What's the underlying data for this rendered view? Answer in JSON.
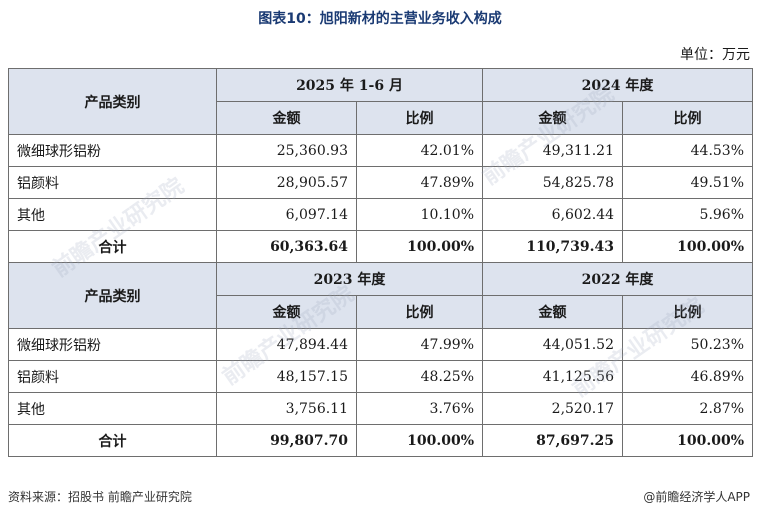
{
  "title": "图表10：旭阳新材的主营业务收入构成",
  "unit": "单位：万元",
  "category_header": "产品类别",
  "amount_label": "金额",
  "ratio_label": "比例",
  "sections": [
    {
      "period_a": "2025 年 1-6 月",
      "period_b": "2024 年度",
      "rows": [
        {
          "category": "微细球形铝粉",
          "a_amount": "25,360.93",
          "a_ratio": "42.01%",
          "b_amount": "49,311.21",
          "b_ratio": "44.53%"
        },
        {
          "category": "铝颜料",
          "a_amount": "28,905.57",
          "a_ratio": "47.89%",
          "b_amount": "54,825.78",
          "b_ratio": "49.51%"
        },
        {
          "category": "其他",
          "a_amount": "6,097.14",
          "a_ratio": "10.10%",
          "b_amount": "6,602.44",
          "b_ratio": "5.96%"
        }
      ],
      "total": {
        "category": "合计",
        "a_amount": "60,363.64",
        "a_ratio": "100.00%",
        "b_amount": "110,739.43",
        "b_ratio": "100.00%"
      }
    },
    {
      "period_a": "2023 年度",
      "period_b": "2022 年度",
      "rows": [
        {
          "category": "微细球形铝粉",
          "a_amount": "47,894.44",
          "a_ratio": "47.99%",
          "b_amount": "44,051.52",
          "b_ratio": "50.23%"
        },
        {
          "category": "铝颜料",
          "a_amount": "48,157.15",
          "a_ratio": "48.25%",
          "b_amount": "41,125.56",
          "b_ratio": "46.89%"
        },
        {
          "category": "其他",
          "a_amount": "3,756.11",
          "a_ratio": "3.76%",
          "b_amount": "2,520.17",
          "b_ratio": "2.87%"
        }
      ],
      "total": {
        "category": "合计",
        "a_amount": "99,807.70",
        "a_ratio": "100.00%",
        "b_amount": "87,697.25",
        "b_ratio": "100.00%"
      }
    }
  ],
  "source": "资料来源：招股书 前瞻产业研究院",
  "credit": "@前瞻经济学人APP",
  "watermark": "前瞻产业研究院"
}
